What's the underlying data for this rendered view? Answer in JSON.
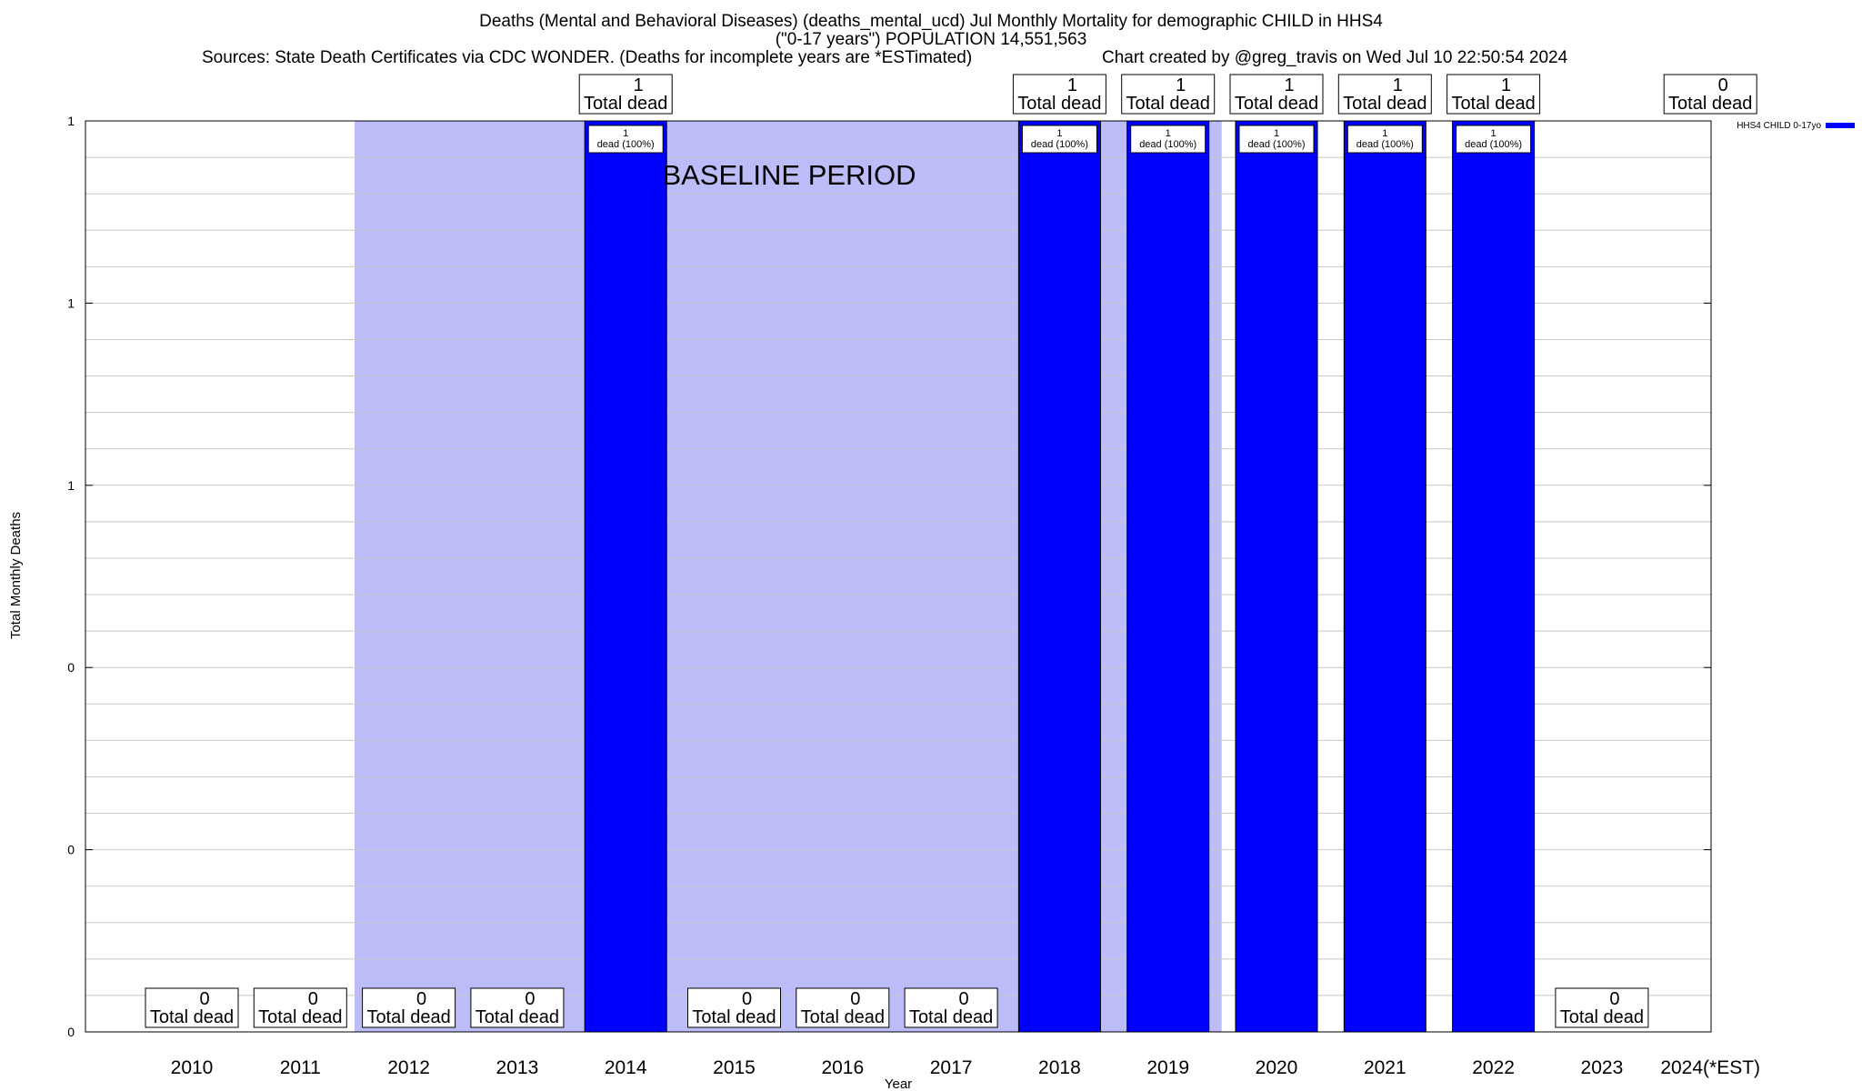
{
  "chart_data": {
    "type": "bar",
    "title": "Deaths (Mental and Behavioral Diseases) (deaths_mental_ucd) Jul Monthly Mortality for demographic CHILD in HHS4",
    "subtitle": "(\"0-17 years\") POPULATION 14,551,563",
    "sources": "Sources: State Death Certificates via CDC WONDER. (Deaths for incomplete years are *ESTimated)",
    "credit": "Chart created by @greg_travis on Wed Jul 10 22:50:54 2024",
    "xlabel": "Year",
    "ylabel": "Total Monthly Deaths",
    "categories": [
      "2010",
      "2011",
      "2012",
      "2013",
      "2014",
      "2015",
      "2016",
      "2017",
      "2018",
      "2019",
      "2020",
      "2021",
      "2022",
      "2023",
      "2024(*EST)"
    ],
    "series": [
      {
        "name": "HHS4 CHILD 0-17yo",
        "color": "#0000ff",
        "values": [
          0,
          0,
          0,
          0,
          1,
          0,
          0,
          0,
          1,
          1,
          1,
          1,
          1,
          0,
          0
        ]
      }
    ],
    "total_labels": [
      "0\nTotal dead",
      "0\nTotal dead",
      "0\nTotal dead",
      "0\nTotal dead",
      "1\nTotal dead",
      "0\nTotal dead",
      "0\nTotal dead",
      "0\nTotal dead",
      "1\nTotal dead",
      "1\nTotal dead",
      "1\nTotal dead",
      "1\nTotal dead",
      "1\nTotal dead",
      "0\nTotal dead",
      "0\nTotal dead"
    ],
    "bar_labels": [
      "",
      "",
      "",
      "",
      "1\ndead (100%)",
      "",
      "",
      "",
      "1\ndead (100%)",
      "1\ndead (100%)",
      "1\ndead (100%)",
      "1\ndead (100%)",
      "1\ndead (100%)",
      "",
      ""
    ],
    "ytick_labels": [
      "0",
      "0",
      "0",
      "1",
      "1",
      "1"
    ],
    "ylim": [
      0,
      1
    ],
    "grid": true,
    "legend_position": "top-right",
    "baseline_period": {
      "label": "BASELINE PERIOD",
      "from": "2012",
      "to": "2019",
      "color": "#bcbcf9"
    }
  }
}
